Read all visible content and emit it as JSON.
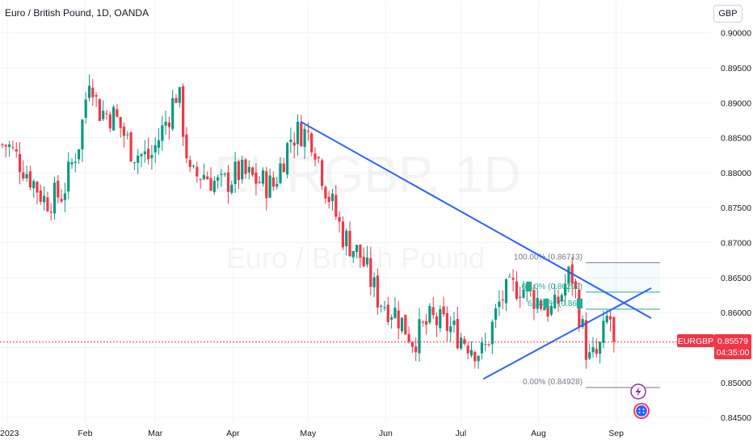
{
  "header": {
    "title": "Euro / British Pound, 1D, OANDA"
  },
  "currency_button": "GBP",
  "watermark": {
    "symbol": "EURGBP, 1D",
    "name": "Euro / British Pound"
  },
  "price_badge": {
    "symbol": "EURGBP",
    "price": "0.85579",
    "countdown": "04:35:00"
  },
  "colors": {
    "up": "#089981",
    "down": "#f23645",
    "trendline": "#2962ff",
    "fib_gray": "#787b86",
    "fib_teal": "#22ab94",
    "price_line": "#f23645"
  },
  "icons": {
    "flash": "lightning-bolt-icon",
    "event": "calendar-events-icon"
  },
  "fib_labels": [
    {
      "text": "100.00% (0.86713)",
      "color": "#787b86"
    },
    {
      "text": "6█.0% (0.86292)",
      "color": "#22ab94"
    },
    {
      "text": "61.8█% (0.86█",
      "color": "#22ab94"
    },
    {
      "text": "0.00% (0.84928)",
      "color": "#787b86"
    }
  ],
  "chart_data": {
    "type": "candlestick",
    "symbol": "EURGBP",
    "timeframe": "1D",
    "title": "Euro / British Pound, 1D, OANDA",
    "ylim": [
      0.8442,
      0.901
    ],
    "y_ticks": [
      "0.90000",
      "0.89500",
      "0.89000",
      "0.88500",
      "0.88000",
      "0.87500",
      "0.87000",
      "0.86500",
      "0.86000",
      "0.85500",
      "0.85000",
      "0.84500"
    ],
    "x_ticks": [
      "2023",
      "Feb",
      "Mar",
      "Apr",
      "May",
      "Jun",
      "Jul",
      "Aug",
      "Sep"
    ],
    "last_price": 0.85579,
    "fib_levels": [
      {
        "ratio": "100.00%",
        "price": 0.86713
      },
      {
        "ratio": "61.8%",
        "price": 0.86048
      },
      {
        "ratio": "0.00%",
        "price": 0.84928
      }
    ],
    "trendlines": [
      {
        "from": [
          "2023-04-28",
          0.8873
        ],
        "to": [
          "2023-09-15",
          0.8592
        ]
      },
      {
        "from": [
          "2023-07-10",
          0.8505
        ],
        "to": [
          "2023-09-15",
          0.8635
        ]
      }
    ],
    "close_path": [
      [
        "2023-01-01",
        0.884
      ],
      [
        "2023-01-09",
        0.88
      ],
      [
        "2023-01-16",
        0.876
      ],
      [
        "2023-01-23",
        0.877
      ],
      [
        "2023-01-30",
        0.885
      ],
      [
        "2023-02-03",
        0.895
      ],
      [
        "2023-02-06",
        0.889
      ],
      [
        "2023-02-13",
        0.888
      ],
      [
        "2023-02-20",
        0.883
      ],
      [
        "2023-02-27",
        0.882
      ],
      [
        "2023-03-06",
        0.888
      ],
      [
        "2023-03-10",
        0.892
      ],
      [
        "2023-03-15",
        0.879
      ],
      [
        "2023-03-20",
        0.88
      ],
      [
        "2023-03-27",
        0.878
      ],
      [
        "2023-04-03",
        0.88
      ],
      [
        "2023-04-10",
        0.879
      ],
      [
        "2023-04-17",
        0.878
      ],
      [
        "2023-04-24",
        0.885
      ],
      [
        "2023-04-28",
        0.886
      ],
      [
        "2023-05-03",
        0.885
      ],
      [
        "2023-05-08",
        0.878
      ],
      [
        "2023-05-15",
        0.871
      ],
      [
        "2023-05-22",
        0.868
      ],
      [
        "2023-05-29",
        0.862
      ],
      [
        "2023-06-05",
        0.86
      ],
      [
        "2023-06-12",
        0.856
      ],
      [
        "2023-06-19",
        0.859
      ],
      [
        "2023-06-26",
        0.858
      ],
      [
        "2023-07-03",
        0.856
      ],
      [
        "2023-07-10",
        0.854
      ],
      [
        "2023-07-17",
        0.862
      ],
      [
        "2023-07-24",
        0.864
      ],
      [
        "2023-07-31",
        0.862
      ],
      [
        "2023-08-07",
        0.86
      ],
      [
        "2023-08-14",
        0.866
      ],
      [
        "2023-08-21",
        0.853
      ],
      [
        "2023-08-25",
        0.854
      ],
      [
        "2023-08-29",
        0.86
      ],
      [
        "2023-09-01",
        0.856
      ]
    ]
  }
}
